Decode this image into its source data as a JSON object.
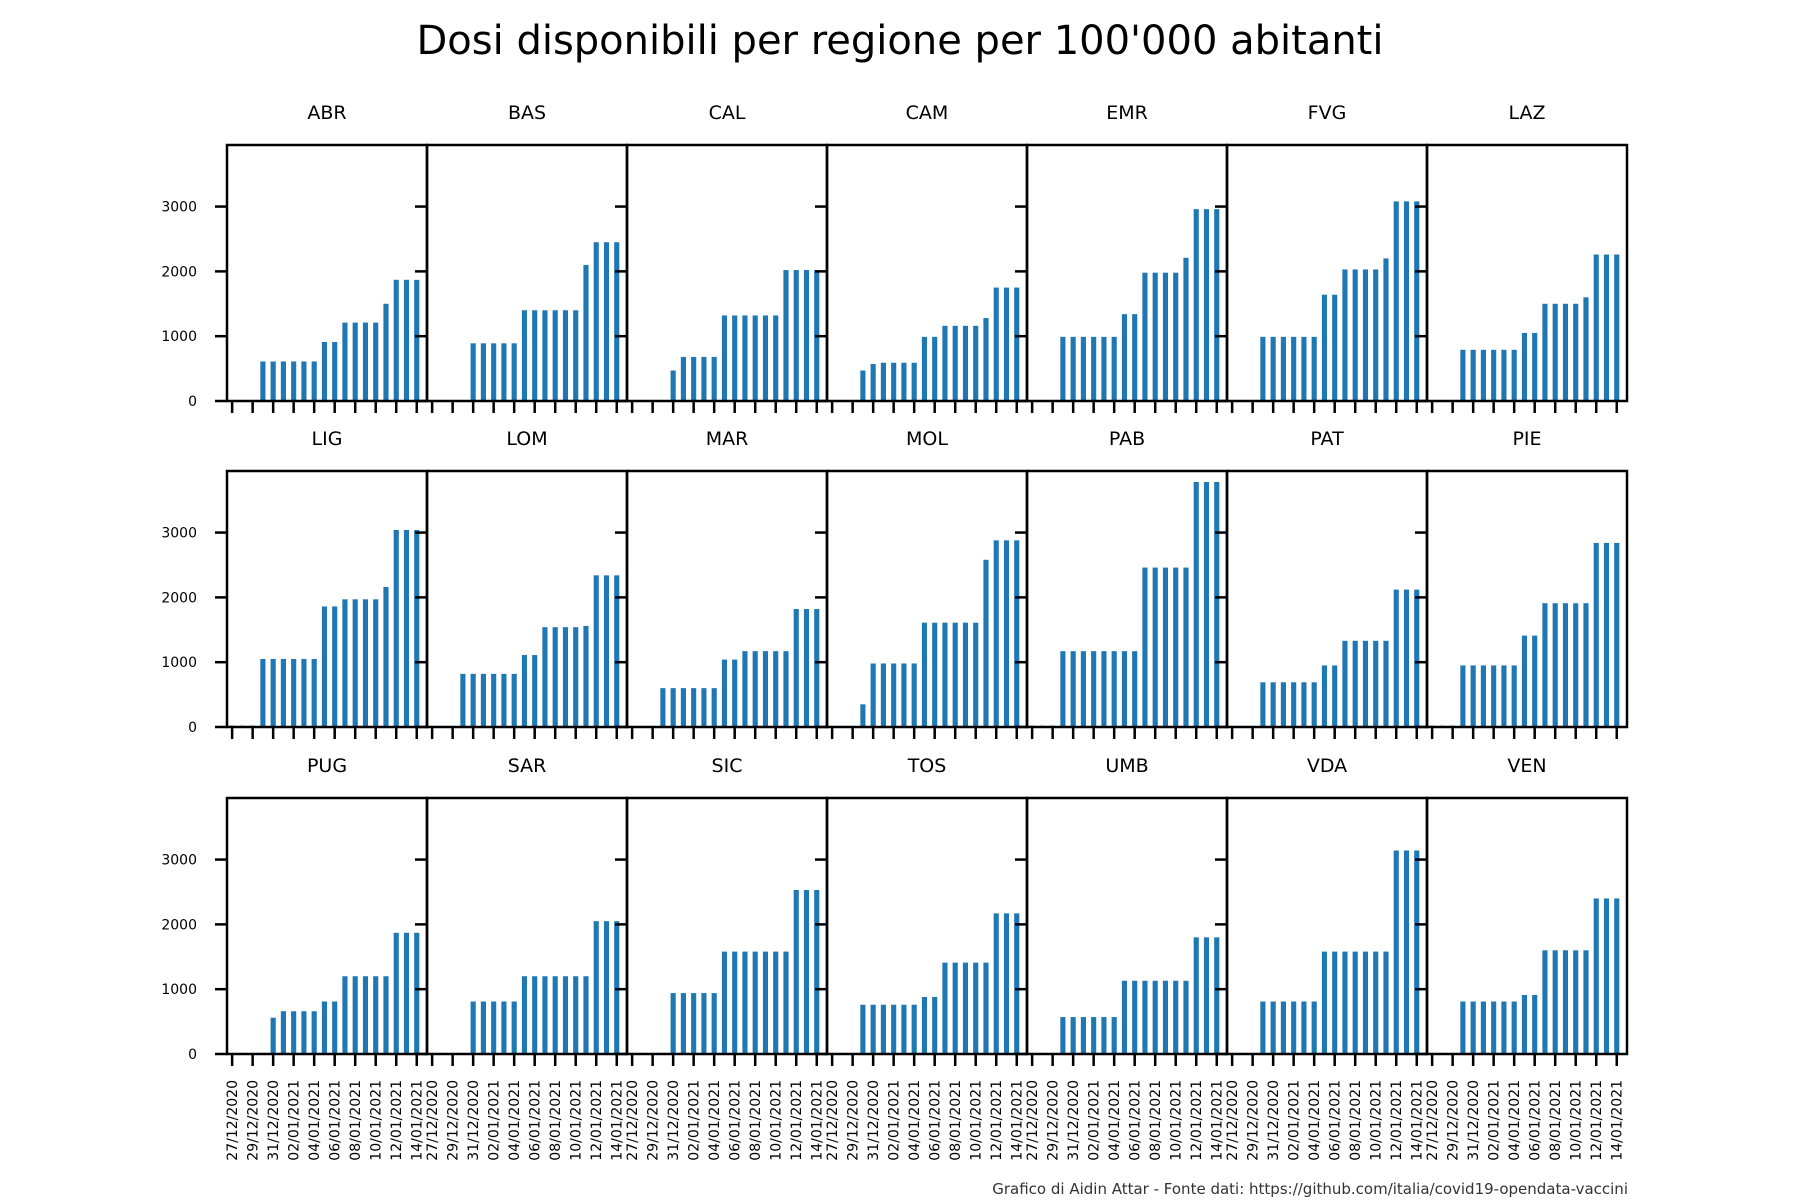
{
  "title": "Dosi disponibili per regione per 100'000 abitanti",
  "source_note": "Grafico di Aidin Attar - Fonte dati: https://github.com/italia/covid19-opendata-vaccini",
  "chart_data": {
    "type": "bar",
    "layout_grid": "3x7",
    "shared_y": true,
    "grid": false,
    "ylim": [
      0,
      3950
    ],
    "yticks": [
      0,
      1000,
      2000,
      3000
    ],
    "xtick_labels": [
      "27/12/2020",
      "29/12/2020",
      "31/12/2020",
      "02/01/2021",
      "04/01/2021",
      "06/01/2021",
      "08/01/2021",
      "10/01/2021",
      "12/01/2021",
      "14/01/2021"
    ],
    "dates": [
      "27/12/2020",
      "28/12/2020",
      "29/12/2020",
      "30/12/2020",
      "31/12/2020",
      "01/01/2021",
      "02/01/2021",
      "03/01/2021",
      "04/01/2021",
      "05/01/2021",
      "06/01/2021",
      "07/01/2021",
      "08/01/2021",
      "09/01/2021",
      "10/01/2021",
      "11/01/2021",
      "12/01/2021",
      "13/01/2021",
      "14/01/2021"
    ],
    "bar_color": "#1f77b4",
    "panels": [
      {
        "name": "ABR",
        "values": [
          0,
          0,
          0,
          610,
          610,
          610,
          610,
          610,
          610,
          910,
          910,
          1210,
          1210,
          1210,
          1210,
          1500,
          1870,
          1870,
          1870
        ]
      },
      {
        "name": "BAS",
        "values": [
          0,
          0,
          0,
          0,
          890,
          890,
          890,
          890,
          890,
          1400,
          1400,
          1400,
          1400,
          1400,
          1400,
          2100,
          2450,
          2450,
          2450
        ]
      },
      {
        "name": "CAL",
        "values": [
          0,
          0,
          0,
          0,
          470,
          680,
          680,
          680,
          680,
          1320,
          1320,
          1320,
          1320,
          1320,
          1320,
          2020,
          2020,
          2020,
          2020
        ]
      },
      {
        "name": "CAM",
        "values": [
          0,
          0,
          0,
          470,
          570,
          590,
          590,
          590,
          590,
          990,
          990,
          1160,
          1160,
          1160,
          1160,
          1280,
          1750,
          1750,
          1750
        ]
      },
      {
        "name": "EMR",
        "values": [
          0,
          0,
          0,
          990,
          990,
          990,
          990,
          990,
          990,
          1340,
          1340,
          1980,
          1980,
          1980,
          1980,
          2210,
          2960,
          2960,
          2960
        ]
      },
      {
        "name": "FVG",
        "values": [
          0,
          0,
          0,
          990,
          990,
          990,
          990,
          990,
          990,
          1640,
          1640,
          2030,
          2030,
          2030,
          2030,
          2200,
          3080,
          3080,
          3080
        ]
      },
      {
        "name": "LAZ",
        "values": [
          0,
          0,
          0,
          790,
          790,
          790,
          790,
          790,
          790,
          1050,
          1050,
          1500,
          1500,
          1500,
          1500,
          1600,
          2260,
          2260,
          2260
        ]
      },
      {
        "name": "LIG",
        "values": [
          20,
          20,
          20,
          1050,
          1050,
          1050,
          1050,
          1050,
          1050,
          1860,
          1860,
          1970,
          1970,
          1970,
          1970,
          2160,
          3040,
          3040,
          3040
        ]
      },
      {
        "name": "LOM",
        "values": [
          0,
          0,
          0,
          820,
          820,
          820,
          820,
          820,
          820,
          1110,
          1110,
          1540,
          1540,
          1540,
          1540,
          1560,
          2340,
          2340,
          2340
        ]
      },
      {
        "name": "MAR",
        "values": [
          0,
          0,
          0,
          600,
          600,
          600,
          600,
          600,
          600,
          1040,
          1040,
          1170,
          1170,
          1170,
          1170,
          1170,
          1820,
          1820,
          1820
        ]
      },
      {
        "name": "MOL",
        "values": [
          0,
          0,
          0,
          350,
          980,
          980,
          980,
          980,
          980,
          1610,
          1610,
          1610,
          1610,
          1610,
          1610,
          2580,
          2880,
          2880,
          2880
        ]
      },
      {
        "name": "PAB",
        "values": [
          20,
          20,
          20,
          1170,
          1170,
          1170,
          1170,
          1170,
          1170,
          1170,
          1170,
          2460,
          2460,
          2460,
          2460,
          2460,
          3780,
          3780,
          3780
        ]
      },
      {
        "name": "PAT",
        "values": [
          0,
          0,
          0,
          690,
          690,
          690,
          690,
          690,
          690,
          950,
          950,
          1330,
          1330,
          1330,
          1330,
          1330,
          2120,
          2120,
          2120
        ]
      },
      {
        "name": "PIE",
        "values": [
          20,
          20,
          20,
          950,
          950,
          950,
          950,
          950,
          950,
          1410,
          1410,
          1910,
          1910,
          1910,
          1910,
          1910,
          2840,
          2840,
          2840
        ]
      },
      {
        "name": "PUG",
        "values": [
          0,
          0,
          0,
          0,
          560,
          660,
          660,
          660,
          660,
          810,
          810,
          1200,
          1200,
          1200,
          1200,
          1200,
          1870,
          1870,
          1870
        ]
      },
      {
        "name": "SAR",
        "values": [
          0,
          0,
          0,
          0,
          810,
          810,
          810,
          810,
          810,
          1200,
          1200,
          1200,
          1200,
          1200,
          1200,
          1200,
          2050,
          2050,
          2050
        ]
      },
      {
        "name": "SIC",
        "values": [
          0,
          0,
          0,
          0,
          940,
          940,
          940,
          940,
          940,
          1580,
          1580,
          1580,
          1580,
          1580,
          1580,
          1580,
          2530,
          2530,
          2530
        ]
      },
      {
        "name": "TOS",
        "values": [
          0,
          0,
          0,
          760,
          760,
          760,
          760,
          760,
          760,
          880,
          880,
          1410,
          1410,
          1410,
          1410,
          1410,
          2170,
          2170,
          2170
        ]
      },
      {
        "name": "UMB",
        "values": [
          0,
          0,
          0,
          570,
          570,
          570,
          570,
          570,
          570,
          1130,
          1130,
          1130,
          1130,
          1130,
          1130,
          1130,
          1800,
          1800,
          1800
        ]
      },
      {
        "name": "VDA",
        "values": [
          0,
          0,
          0,
          810,
          810,
          810,
          810,
          810,
          810,
          1580,
          1580,
          1580,
          1580,
          1580,
          1580,
          1580,
          3140,
          3140,
          3140
        ]
      },
      {
        "name": "VEN",
        "values": [
          0,
          0,
          0,
          810,
          810,
          810,
          810,
          810,
          810,
          910,
          910,
          1600,
          1600,
          1600,
          1600,
          1600,
          2400,
          2400,
          2400
        ]
      }
    ]
  }
}
